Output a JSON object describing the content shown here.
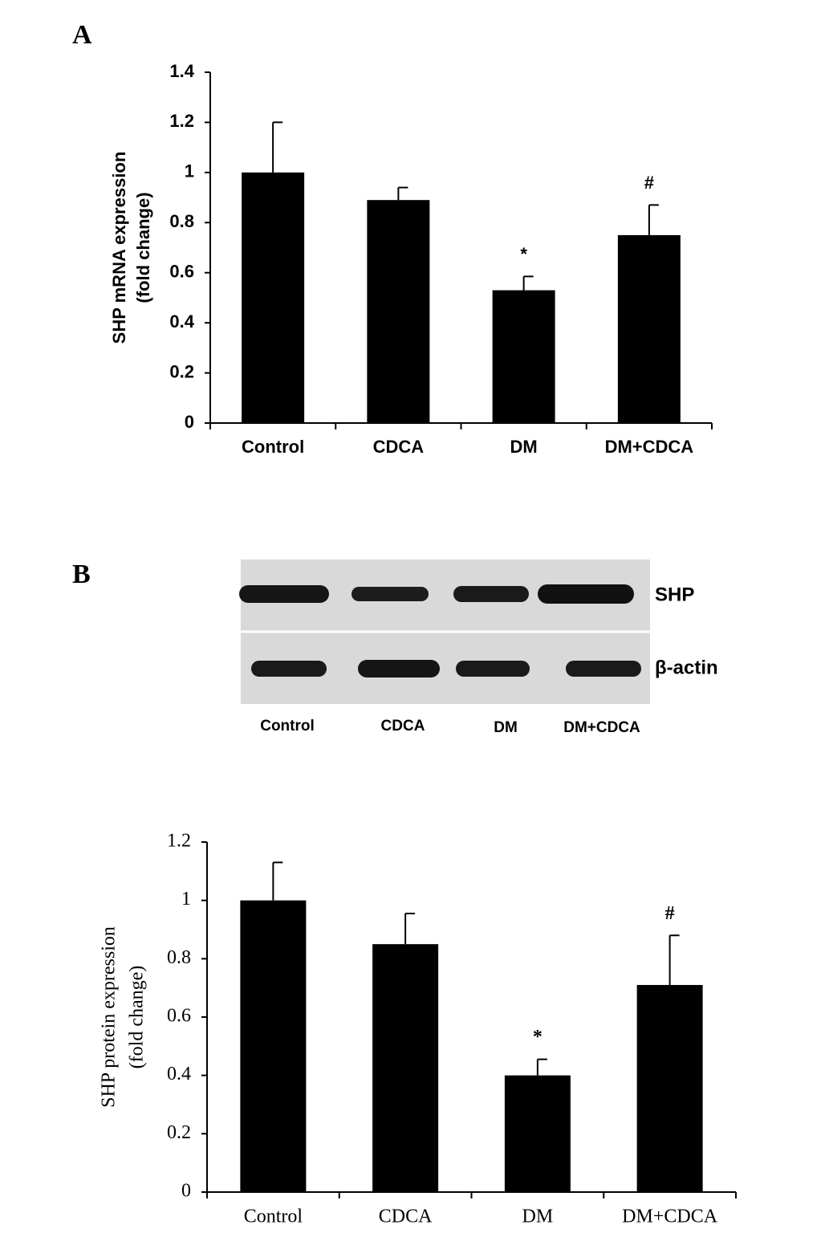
{
  "panels": [
    "A",
    "B"
  ],
  "blot": {
    "bands": [
      "SHP",
      "β-actin"
    ],
    "lanes": [
      "Control",
      "CDCA",
      "DM",
      "DM+CDCA"
    ]
  },
  "chart_data": [
    {
      "type": "bar",
      "ylabel": [
        "SHP mRNA expression",
        "(fold change)"
      ],
      "categories": [
        "Control",
        "CDCA",
        "DM",
        "DM+CDCA"
      ],
      "values": [
        1.0,
        0.89,
        0.53,
        0.75
      ],
      "errors": [
        0.2,
        0.05,
        0.055,
        0.12
      ],
      "markers": [
        null,
        null,
        "*",
        "#"
      ],
      "color": "#000000",
      "ylim": [
        0,
        1.4
      ],
      "yticks": [
        0,
        0.2,
        0.4,
        0.6,
        0.8,
        1,
        1.2,
        1.4
      ]
    },
    {
      "type": "bar",
      "ylabel": [
        "SHP protein expression",
        "(fold change)"
      ],
      "categories": [
        "Control",
        "CDCA",
        "DM",
        "DM+CDCA"
      ],
      "values": [
        1.0,
        0.85,
        0.4,
        0.71
      ],
      "errors": [
        0.13,
        0.105,
        0.055,
        0.17
      ],
      "markers": [
        null,
        null,
        "*",
        "#"
      ],
      "color": "#000000",
      "ylim": [
        0,
        1.2
      ],
      "yticks": [
        0,
        0.2,
        0.4,
        0.6,
        0.8,
        1,
        1.2
      ]
    }
  ]
}
